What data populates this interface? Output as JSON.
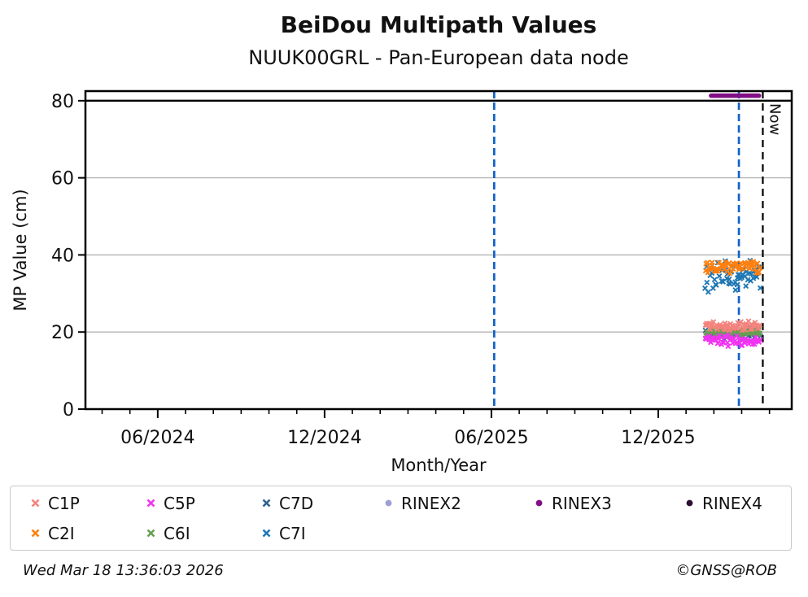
{
  "header": {
    "title": "BeiDou Multipath Values",
    "subtitle": "NUUK00GRL - Pan-European data node"
  },
  "footer": {
    "timestamp": "Wed Mar 18 13:36:03 2026",
    "copyright": "©GNSS@ROB"
  },
  "chart_data": {
    "type": "scatter",
    "title": "BeiDou Multipath Values",
    "subtitle": "NUUK00GRL - Pan-European data node",
    "xlabel": "Month/Year",
    "ylabel": "MP Value (cm)",
    "x_unit": "months_since_2024_01",
    "xlim_months": [
      2.4,
      27.8
    ],
    "ylim": [
      0,
      82.5
    ],
    "yticks": [
      0,
      20,
      40,
      60,
      80
    ],
    "grid_y": [
      20,
      40,
      60
    ],
    "grid_color": "#b3b3b3",
    "threshold_line": {
      "value": 80,
      "color": "#000000"
    },
    "xticks": [
      {
        "month": 5,
        "label": "06/2024"
      },
      {
        "month": 11,
        "label": "12/2024"
      },
      {
        "month": 17,
        "label": "06/2025"
      },
      {
        "month": 23,
        "label": "12/2025"
      }
    ],
    "minor_xtick_months": [
      3,
      4,
      5,
      6,
      7,
      8,
      9,
      10,
      11,
      12,
      13,
      14,
      15,
      16,
      17,
      18,
      19,
      20,
      21,
      22,
      23,
      24,
      25,
      26,
      27
    ],
    "event_lines": [
      {
        "month": 17.1,
        "color": "#1362c6",
        "label": ""
      },
      {
        "month": 25.9,
        "color": "#1362c6",
        "label": ""
      },
      {
        "month": 26.76,
        "color": "#000000",
        "label": "Now"
      }
    ],
    "rinex_format_segments": [
      {
        "name": "RINEX3",
        "month_start": 24.9,
        "month_end": 26.62,
        "value": 81.3,
        "color": "#800f86"
      }
    ],
    "series": [
      {
        "name": "C7I",
        "color": "#1f77b4",
        "marker": "x",
        "month_start": 24.7,
        "month_end": 26.66,
        "n_points": 55,
        "mean_value": 34.9,
        "spread": 2.3,
        "seed": 66
      },
      {
        "name": "C2I",
        "color": "#ff7f0e",
        "marker": "x",
        "month_start": 24.7,
        "month_end": 26.66,
        "n_points": 55,
        "mean_value": 37.1,
        "spread": 1.1,
        "seed": 22
      },
      {
        "name": "C7D",
        "color": "#2d628f",
        "marker": "x",
        "month_start": 24.7,
        "month_end": 26.66,
        "n_points": 55,
        "mean_value": 19.5,
        "spread": 0.8,
        "seed": 55
      },
      {
        "name": "C6I",
        "color": "#66a050",
        "marker": "x",
        "month_start": 24.7,
        "month_end": 26.66,
        "n_points": 55,
        "mean_value": 19.9,
        "spread": 0.6,
        "seed": 44
      },
      {
        "name": "C5P",
        "color": "#f233f2",
        "marker": "x",
        "month_start": 24.7,
        "month_end": 26.66,
        "n_points": 55,
        "mean_value": 17.8,
        "spread": 0.8,
        "seed": 33
      },
      {
        "name": "C1P",
        "color": "#f4837d",
        "marker": "x",
        "month_start": 24.7,
        "month_end": 26.66,
        "n_points": 55,
        "mean_value": 21.6,
        "spread": 0.8,
        "seed": 11
      }
    ],
    "legend": {
      "items": [
        {
          "label": "C1P",
          "color": "#f4837d",
          "marker": "x",
          "col": 1,
          "row": 1
        },
        {
          "label": "C2I",
          "color": "#ff7f0e",
          "marker": "x",
          "col": 1,
          "row": 2
        },
        {
          "label": "C5P",
          "color": "#f233f2",
          "marker": "x",
          "col": 2,
          "row": 1
        },
        {
          "label": "C6I",
          "color": "#66a050",
          "marker": "x",
          "col": 2,
          "row": 2
        },
        {
          "label": "C7D",
          "color": "#2d628f",
          "marker": "x",
          "col": 3,
          "row": 1
        },
        {
          "label": "C7I",
          "color": "#1f77b4",
          "marker": "x",
          "col": 3,
          "row": 2
        },
        {
          "label": "RINEX2",
          "color": "#9e9ed6",
          "marker": "dot",
          "col": 4,
          "row": 1
        },
        {
          "label": "RINEX3",
          "color": "#800f86",
          "marker": "dot",
          "col": 5,
          "row": 1
        },
        {
          "label": "RINEX4",
          "color": "#2b1033",
          "marker": "dot",
          "col": 6,
          "row": 1
        }
      ]
    }
  }
}
